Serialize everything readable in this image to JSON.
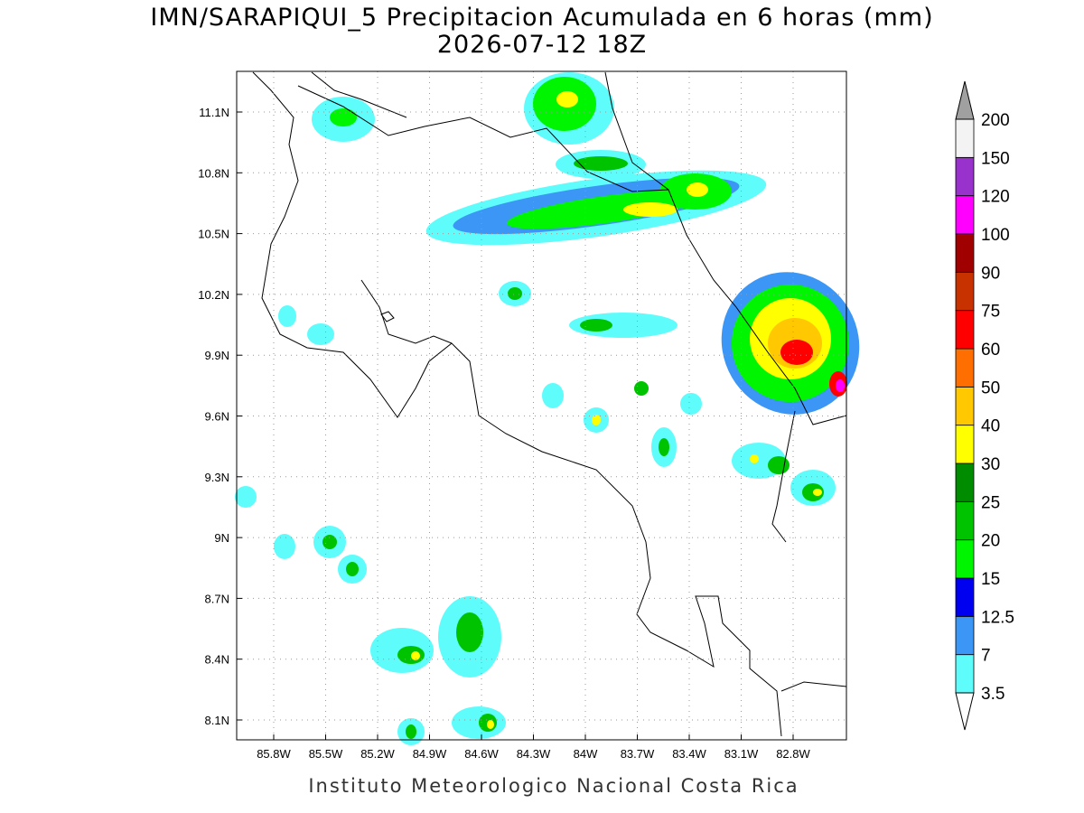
{
  "header": {
    "title": "IMN/SARAPIQUI_5 Precipitacion Acumulada en 6 horas (mm)",
    "subtitle": "2026-07-12 18Z"
  },
  "map": {
    "lat_labels": [
      "11.1N",
      "10.8N",
      "10.5N",
      "10.2N",
      "9.9N",
      "9.6N",
      "9.3N",
      "9N",
      "8.7N",
      "8.4N",
      "8.1N"
    ],
    "lon_labels": [
      "85.8W",
      "85.5W",
      "85.2W",
      "84.9W",
      "84.6W",
      "84.3W",
      "84W",
      "83.7W",
      "83.4W",
      "83.1W",
      "82.8W"
    ]
  },
  "colorbar": {
    "levels": [
      3.5,
      7,
      12.5,
      15,
      20,
      25,
      30,
      40,
      50,
      60,
      75,
      90,
      100,
      120,
      150,
      200
    ],
    "colors": [
      "#5ffcfc",
      "#3c96f5",
      "#0000f0",
      "#00f500",
      "#00c300",
      "#008c00",
      "#ffff00",
      "#ffc800",
      "#ff6e00",
      "#ff0000",
      "#c83200",
      "#a00000",
      "#ff00ff",
      "#9932cc",
      "#f3f3f3"
    ],
    "over_color": "#a0a0a0",
    "under_color": "#ffffff"
  },
  "footer": "Instituto Meteorologico Nacional Costa Rica"
}
